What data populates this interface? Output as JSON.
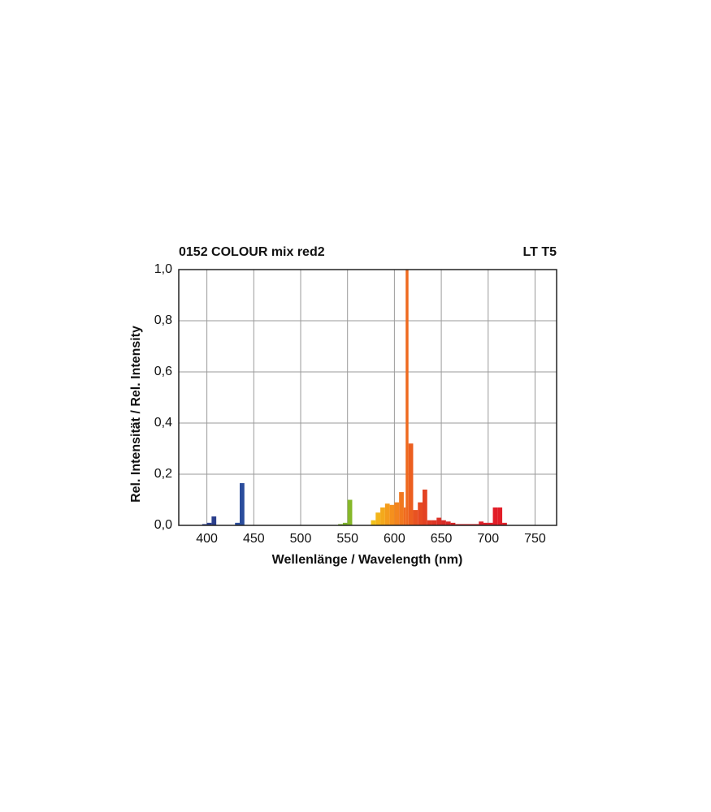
{
  "chart_data": {
    "type": "bar",
    "title": "0152 COLOUR mix red2",
    "subtitle": "LT T5",
    "xlabel": "Wellenlänge / Wavelength (nm)",
    "ylabel": "Rel. Intensität / Rel. Intensity",
    "x": [
      380,
      395,
      400,
      405,
      410,
      430,
      435,
      440,
      540,
      545,
      550,
      555,
      575,
      580,
      585,
      590,
      595,
      600,
      605,
      610,
      612,
      615,
      620,
      625,
      630,
      635,
      640,
      645,
      650,
      655,
      660,
      665,
      690,
      695,
      700,
      705,
      710,
      715,
      720
    ],
    "values": [
      0,
      0.005,
      0.01,
      0.035,
      0,
      0.01,
      0.165,
      0,
      0.005,
      0.01,
      0.1,
      0,
      0.02,
      0.05,
      0.07,
      0.085,
      0.08,
      0.09,
      0.13,
      0.07,
      1.0,
      0.32,
      0.06,
      0.09,
      0.14,
      0.02,
      0.02,
      0.03,
      0.02,
      0.015,
      0.01,
      0.005,
      0.015,
      0.01,
      0.01,
      0.07,
      0.07,
      0.01,
      0
    ],
    "colors": [
      "#2b3f8c",
      "#2b3f8c",
      "#2b3f8c",
      "#2b3f8c",
      "#2b3f8c",
      "#2b4d9c",
      "#2b4d9c",
      "#2b4d9c",
      "#7db42c",
      "#7db42c",
      "#86b82a",
      "#86b82a",
      "#f2c21a",
      "#f3b51a",
      "#f4a91b",
      "#f49c1c",
      "#f5901d",
      "#f3841e",
      "#f1781f",
      "#f06b1f",
      "#ef6a1f",
      "#ec5f20",
      "#e85322",
      "#e64a22",
      "#e34323",
      "#e03b24",
      "#de3525",
      "#dc3026",
      "#d92b27",
      "#d82828",
      "#d72628",
      "#d62428",
      "#e0202a",
      "#e0202a",
      "#e0202a",
      "#e21e28",
      "#e21e28",
      "#e21e28",
      "#e21e28"
    ],
    "xlim": [
      370,
      773
    ],
    "ylim": [
      0,
      1
    ],
    "xticks": [
      400,
      450,
      500,
      550,
      600,
      650,
      700,
      750
    ],
    "yticks": [
      {
        "value": 0,
        "label": "0,0"
      },
      {
        "value": 0.2,
        "label": "0,2"
      },
      {
        "value": 0.4,
        "label": "0,4"
      },
      {
        "value": 0.6,
        "label": "0,6"
      },
      {
        "value": 0.8,
        "label": "0,8"
      },
      {
        "value": 1.0,
        "label": "1,0"
      }
    ],
    "grid": true
  }
}
